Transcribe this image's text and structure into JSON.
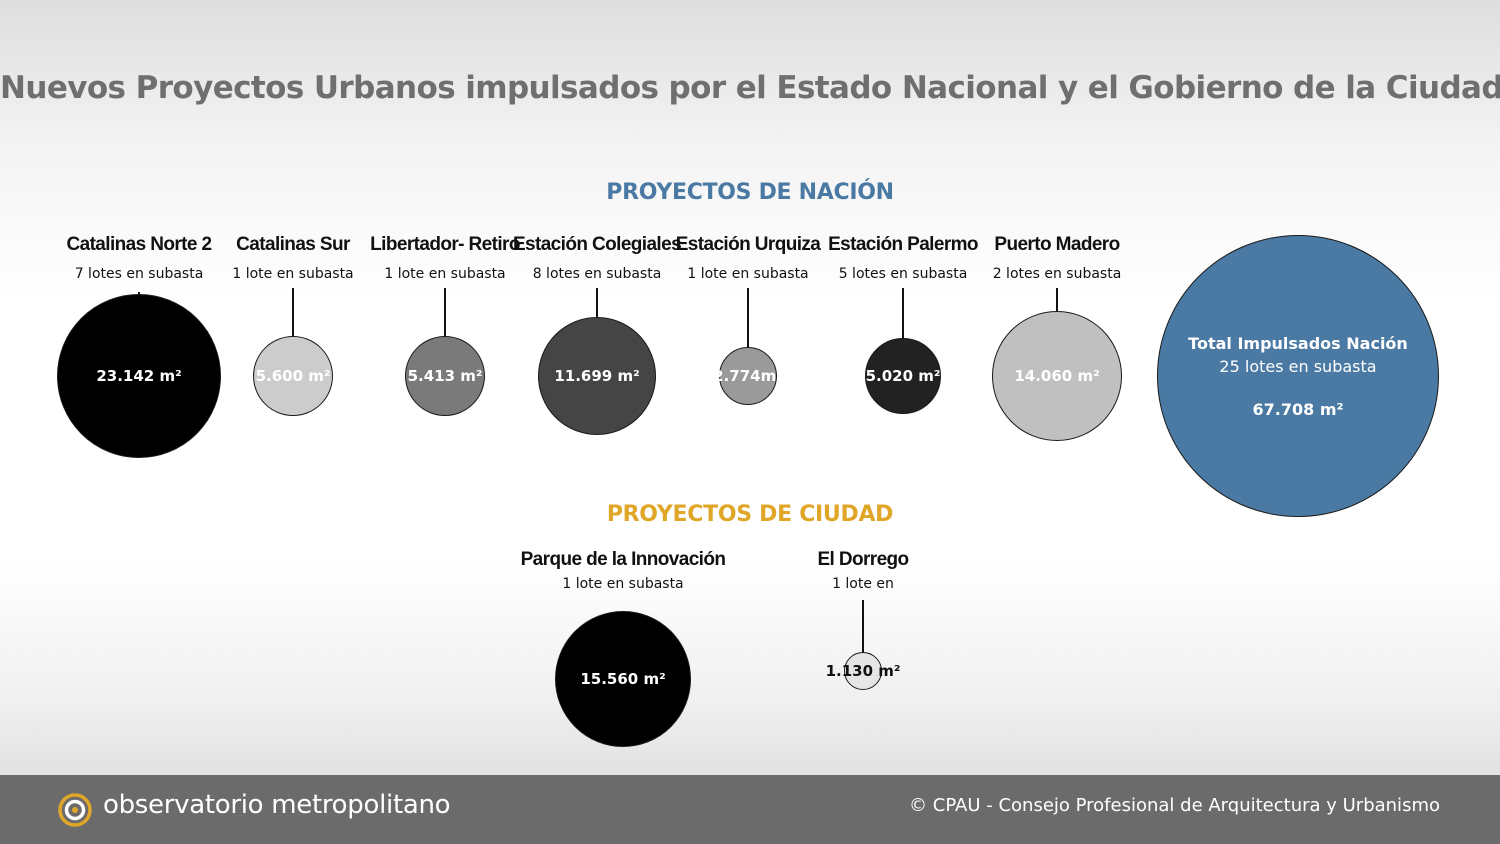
{
  "title": "Nuevos Proyectos Urbanos impulsados por el Estado Nacional y el Gobierno de la Ciudad",
  "sections": {
    "nacion": {
      "label": "PROYECTOS DE NACIÓN",
      "color": "#4a7aa3"
    },
    "ciudad": {
      "label": "PROYECTOS DE CIUDAD",
      "color": "#e0a628"
    }
  },
  "nacion_projects": [
    {
      "name": "Catalinas Norte 2",
      "lots": "7 lotes en subasta",
      "area": "23.142 m²",
      "area_value": 23142,
      "fill": "#000000",
      "text_color": "#ffffff"
    },
    {
      "name": "Catalinas Sur",
      "lots": "1 lote en subasta",
      "area": "5.600 m²",
      "area_value": 5600,
      "fill": "#cccccc",
      "text_color": "#ffffff"
    },
    {
      "name": "Libertador- Retiro",
      "lots": "1 lote en subasta",
      "area": "5.413 m²",
      "area_value": 5413,
      "fill": "#7a7a7a",
      "text_color": "#ffffff"
    },
    {
      "name": "Estación Colegiales",
      "lots": "8 lotes en subasta",
      "area": "11.699 m²",
      "area_value": 11699,
      "fill": "#454545",
      "text_color": "#ffffff"
    },
    {
      "name": "Estación Urquiza",
      "lots": "1 lote en subasta",
      "area": "2.774m²",
      "area_value": 2774,
      "fill": "#9a9a9a",
      "text_color": "#ffffff"
    },
    {
      "name": "Estación Palermo",
      "lots": "5 lotes en subasta",
      "area": "5.020 m²",
      "area_value": 5020,
      "fill": "#222222",
      "text_color": "#ffffff"
    },
    {
      "name": "Puerto Madero",
      "lots": "2 lotes en subasta",
      "area": "14.060 m²",
      "area_value": 14060,
      "fill": "#c0c0c0",
      "text_color": "#ffffff"
    }
  ],
  "total": {
    "title": "Total Impulsados Nación",
    "lots": "25 lotes en subasta",
    "area": "67.708 m²",
    "area_value": 67708,
    "fill": "#4a7aa3"
  },
  "ciudad_projects": [
    {
      "name": "Parque de la Innovación",
      "lots": "1 lote en subasta",
      "area": "15.560 m²",
      "area_value": 15560,
      "fill": "#000000",
      "text_color": "#ffffff"
    },
    {
      "name": "El Dorrego",
      "lots": "1 lote en",
      "area": "1.130 m²",
      "area_value": 1130,
      "fill": "#e6e6e6",
      "text_color": "#111111"
    }
  ],
  "footer": {
    "brand": "observatorio metropolitano",
    "logo_icon": "om-logo-icon",
    "logo_color": "#e0a628",
    "copyright": "© CPAU - Consejo Profesional de Arquitectura y Urbanismo"
  }
}
